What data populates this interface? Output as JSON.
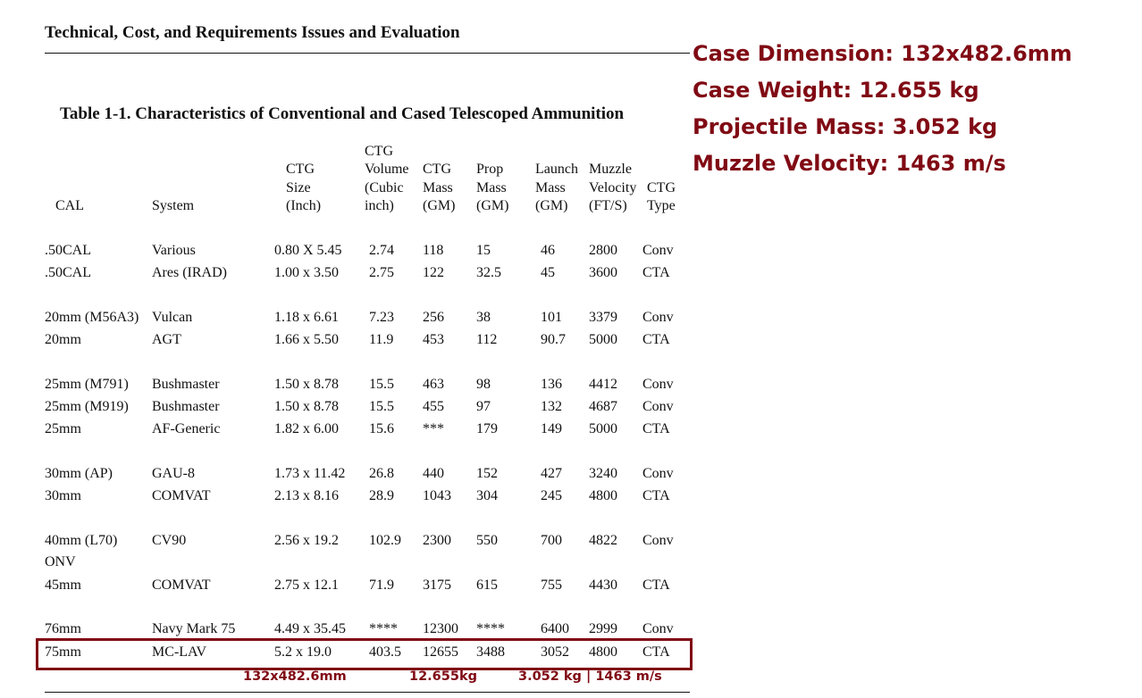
{
  "header": {
    "title": "Technical, Cost, and Requirements Issues and Evaluation"
  },
  "notes": [
    "Case Dimension: 132x482.6mm",
    "Case Weight: 12.655 kg",
    "Projectile Mass: 3.052 kg",
    "Muzzle Velocity: 1463 m/s"
  ],
  "table": {
    "title": "Table 1-1.  Characteristics of Conventional and Cased Telescoped Ammunition",
    "columns": [
      [
        "CAL"
      ],
      [
        "System"
      ],
      [
        "CTG",
        "Size",
        "(Inch)"
      ],
      [
        "CTG",
        "Volume",
        "(Cubic",
        "inch)"
      ],
      [
        "CTG",
        "Mass",
        "(GM)"
      ],
      [
        "Prop",
        "Mass",
        "(GM)"
      ],
      [
        "Launch",
        "Mass",
        "(GM)"
      ],
      [
        "Muzzle",
        "Velocity",
        "(FT/S)"
      ],
      [
        "CTG",
        "Type"
      ]
    ],
    "rows": [
      [
        ".50CAL",
        "Various",
        "0.80 X 5.45",
        "2.74",
        "118",
        "15",
        "46",
        "2800",
        "Conv"
      ],
      [
        ".50CAL",
        "Ares (IRAD)",
        "1.00 x 3.50",
        "2.75",
        "122",
        "32.5",
        "45",
        "3600",
        "CTA"
      ],
      [
        "20mm (M56A3)",
        "Vulcan",
        "1.18 x 6.61",
        "7.23",
        "256",
        "38",
        "101",
        "3379",
        "Conv"
      ],
      [
        "20mm",
        "AGT",
        "1.66 x 5.50",
        "11.9",
        "453",
        "112",
        "90.7",
        "5000",
        "CTA"
      ],
      [
        "25mm (M791)",
        "Bushmaster",
        "1.50 x 8.78",
        "15.5",
        "463",
        "98",
        "136",
        "4412",
        "Conv"
      ],
      [
        "25mm (M919)",
        "Bushmaster",
        "1.50 x 8.78",
        "15.5",
        "455",
        "97",
        "132",
        "4687",
        "Conv"
      ],
      [
        "25mm",
        "AF-Generic",
        "1.82 x 6.00",
        "15.6",
        "***",
        "179",
        "149",
        "5000",
        "CTA"
      ],
      [
        "30mm (AP)",
        "GAU-8",
        "1.73 x 11.42",
        "26.8",
        "440",
        "152",
        "427",
        "3240",
        "Conv"
      ],
      [
        "30mm",
        "COMVAT",
        "2.13 x 8.16",
        "28.9",
        "1043",
        "304",
        "245",
        "4800",
        "CTA"
      ],
      [
        "40mm (L70) ONV",
        "CV90",
        "2.56 x 19.2",
        "102.9",
        "2300",
        "550",
        "700",
        "4822",
        "Conv"
      ],
      [
        "45mm",
        "COMVAT",
        "2.75 x 12.1",
        "71.9",
        "3175",
        "615",
        "755",
        "4430",
        "CTA"
      ],
      [
        "76mm",
        "Navy Mark 75",
        "4.49 x 35.45",
        "****",
        "12300",
        "****",
        "6400",
        "2999",
        "Conv"
      ],
      [
        "75mm",
        "MC-LAV",
        "5.2 x 19.0",
        "403.5",
        "12655",
        "3488",
        "3052",
        "4800",
        "CTA"
      ]
    ]
  },
  "footnotes": [
    "132x482.6mm",
    "12.655kg",
    "3.052 kg | 1463 m/s"
  ]
}
